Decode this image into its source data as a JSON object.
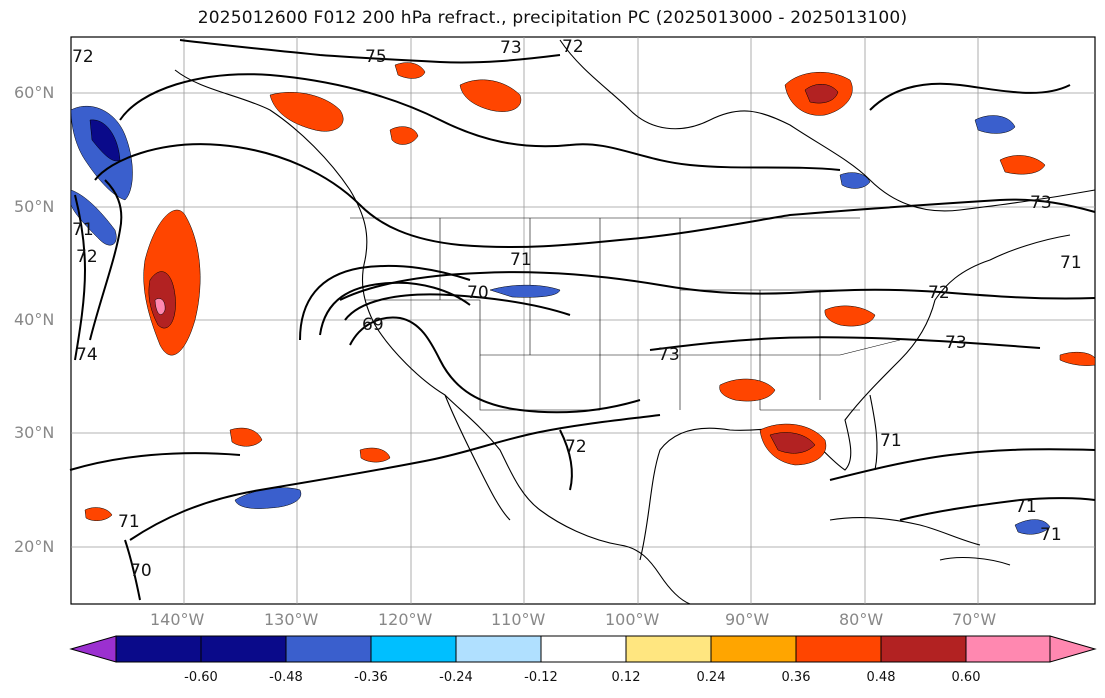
{
  "title": "2025012600 F012 200 hPa refract., precipitation PC (2025013000 - 2025013100)",
  "lat_labels": [
    "60°N",
    "50°N",
    "40°N",
    "30°N",
    "20°N"
  ],
  "lon_labels": [
    "140°W",
    "130°W",
    "120°W",
    "110°W",
    "100°W",
    "90°W",
    "80°W",
    "70°W"
  ],
  "contour_labels": [
    "75",
    "73",
    "72",
    "71",
    "70",
    "69",
    "72",
    "73",
    "72",
    "71",
    "71",
    "71",
    "71",
    "70",
    "72",
    "74",
    "73",
    "71",
    "73",
    "72",
    "71"
  ],
  "colorbar": {
    "colors": [
      "#9b30d0",
      "#0a0a8a",
      "#3a5fcd",
      "#00bfff",
      "#b0e0ff",
      "#ffffff",
      "#ffe680",
      "#ffa500",
      "#ff4500",
      "#b22222",
      "#ff88b0"
    ],
    "ticks": [
      "-0.60",
      "-0.48",
      "-0.36",
      "-0.24",
      "-0.12",
      "0.12",
      "0.24",
      "0.36",
      "0.48",
      "0.60"
    ]
  }
}
